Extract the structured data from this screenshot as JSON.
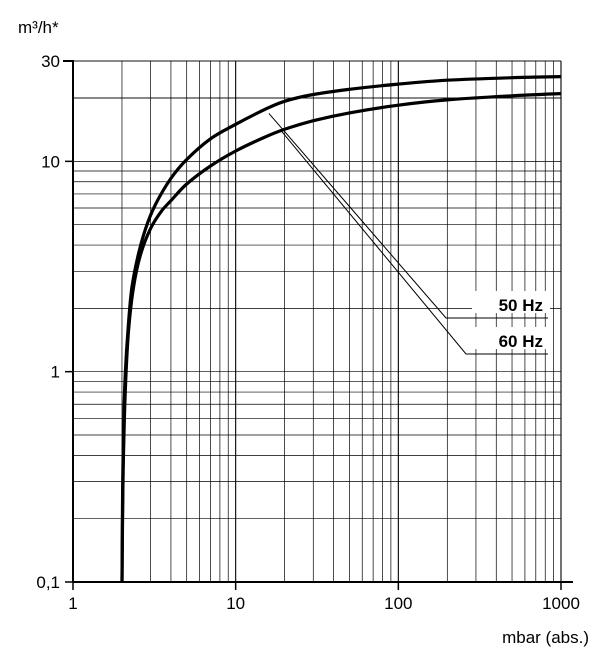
{
  "chart_data": {
    "type": "line",
    "title": "",
    "ylabel": "m³/h*",
    "xlabel": "mbar (abs.)",
    "x_scale": "log",
    "y_scale": "log",
    "xlim": [
      1,
      1000
    ],
    "ylim": [
      0.1,
      30
    ],
    "grid": true,
    "legend_placement": "right, callout lines pointing to curves",
    "x_ticks": [
      {
        "value": 1,
        "label": "1"
      },
      {
        "value": 10,
        "label": "10"
      },
      {
        "value": 100,
        "label": "100"
      },
      {
        "value": 1000,
        "label": "1000"
      }
    ],
    "y_ticks": [
      {
        "value": 0.1,
        "label": "0,1"
      },
      {
        "value": 1,
        "label": "1"
      },
      {
        "value": 10,
        "label": "10"
      },
      {
        "value": 30,
        "label": "30"
      }
    ],
    "series": [
      {
        "name": "60 Hz",
        "color": "#000000",
        "points": [
          [
            2.0,
            0.1
          ],
          [
            2.03,
            0.3
          ],
          [
            2.07,
            0.6
          ],
          [
            2.12,
            1.0
          ],
          [
            2.2,
            1.6
          ],
          [
            2.35,
            2.5
          ],
          [
            2.6,
            3.6
          ],
          [
            3.0,
            4.8
          ],
          [
            3.5,
            5.8
          ],
          [
            4.0,
            6.5
          ],
          [
            5.0,
            7.8
          ],
          [
            7.0,
            9.5
          ],
          [
            10,
            11.2
          ],
          [
            15,
            13.0
          ],
          [
            20,
            14.2
          ],
          [
            30,
            15.6
          ],
          [
            50,
            17.0
          ],
          [
            100,
            18.5
          ],
          [
            200,
            19.6
          ],
          [
            500,
            20.5
          ],
          [
            1000,
            21.0
          ]
        ]
      },
      {
        "name": "50 Hz",
        "color": "#000000",
        "points": [
          [
            2.0,
            0.1
          ],
          [
            2.02,
            0.3
          ],
          [
            2.05,
            0.6
          ],
          [
            2.1,
            1.0
          ],
          [
            2.18,
            1.6
          ],
          [
            2.3,
            2.5
          ],
          [
            2.5,
            3.5
          ],
          [
            2.8,
            4.8
          ],
          [
            3.2,
            6.2
          ],
          [
            4.0,
            8.3
          ],
          [
            5.0,
            10.2
          ],
          [
            7.0,
            12.8
          ],
          [
            10,
            15.0
          ],
          [
            15,
            17.6
          ],
          [
            20,
            19.3
          ],
          [
            30,
            20.8
          ],
          [
            50,
            22.0
          ],
          [
            100,
            23.3
          ],
          [
            200,
            24.3
          ],
          [
            500,
            25.0
          ],
          [
            1000,
            25.3
          ]
        ]
      }
    ],
    "legend": [
      {
        "label": "50 Hz",
        "anchor": [
          16,
          16.9
        ]
      },
      {
        "label": "60 Hz",
        "anchor": [
          19,
          14.0
        ]
      }
    ]
  }
}
